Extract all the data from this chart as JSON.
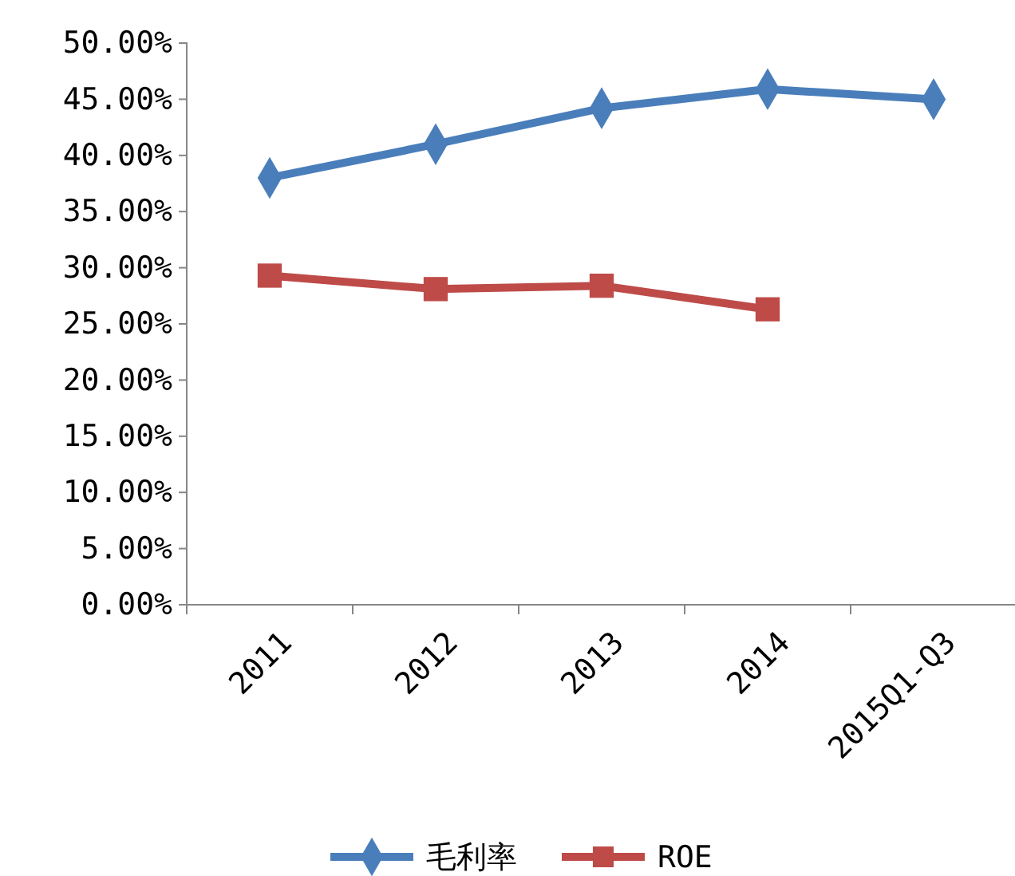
{
  "chart_data": {
    "type": "line",
    "categories": [
      "2011",
      "2012",
      "2013",
      "2014",
      "2015Q1-Q3"
    ],
    "series": [
      {
        "name": "毛利率",
        "color": "#4a7ebb",
        "values": [
          38.0,
          41.0,
          44.2,
          45.9,
          45.0
        ],
        "marker": "diamond"
      },
      {
        "name": "ROE",
        "color": "#be4b48",
        "values": [
          29.3,
          28.1,
          28.4,
          26.3,
          null
        ],
        "marker": "square"
      }
    ],
    "ylim": [
      0,
      50
    ],
    "yticks": [
      {
        "value": 0,
        "label": "0.00%"
      },
      {
        "value": 5,
        "label": "5.00%"
      },
      {
        "value": 10,
        "label": "10.00%"
      },
      {
        "value": 15,
        "label": "15.00%"
      },
      {
        "value": 20,
        "label": "20.00%"
      },
      {
        "value": 25,
        "label": "25.00%"
      },
      {
        "value": 30,
        "label": "30.00%"
      },
      {
        "value": 35,
        "label": "35.00%"
      },
      {
        "value": 40,
        "label": "40.00%"
      },
      {
        "value": 45,
        "label": "45.00%"
      },
      {
        "value": 50,
        "label": "50.00%"
      }
    ],
    "grid": false,
    "legend": "bottom",
    "line_style": "solid"
  }
}
